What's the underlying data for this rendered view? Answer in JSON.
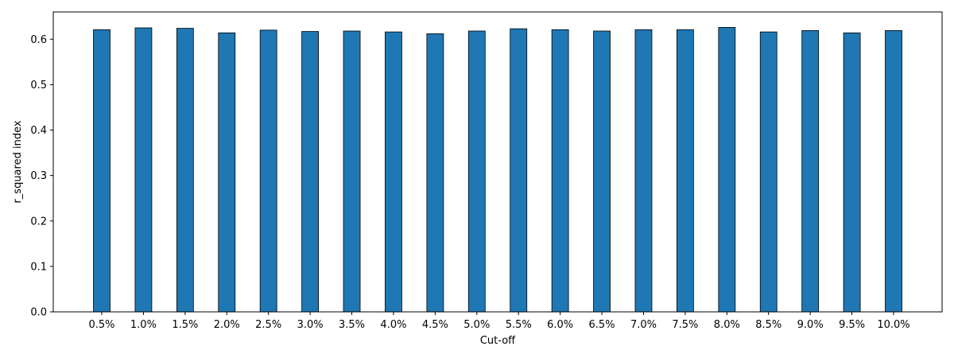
{
  "chart_data": {
    "type": "bar",
    "xlabel": "Cut-off",
    "ylabel": "r_squared index",
    "ylim": [
      0,
      0.66
    ],
    "yticks": [
      0.0,
      0.1,
      0.2,
      0.3,
      0.4,
      0.5,
      0.6
    ],
    "ytick_labels": [
      "0.0",
      "0.1",
      "0.2",
      "0.3",
      "0.4",
      "0.5",
      "0.6"
    ],
    "grid": false,
    "bar_color": "#1f77b4",
    "edge_color": "#000000",
    "categories": [
      "0.5%",
      "1.0%",
      "1.5%",
      "2.0%",
      "2.5%",
      "3.0%",
      "3.5%",
      "4.0%",
      "4.5%",
      "5.0%",
      "5.5%",
      "6.0%",
      "6.5%",
      "7.0%",
      "7.5%",
      "8.0%",
      "8.5%",
      "9.0%",
      "9.5%",
      "10.0%"
    ],
    "values": [
      0.621,
      0.625,
      0.624,
      0.614,
      0.62,
      0.617,
      0.618,
      0.616,
      0.612,
      0.618,
      0.623,
      0.621,
      0.618,
      0.621,
      0.621,
      0.626,
      0.616,
      0.619,
      0.614,
      0.619
    ]
  }
}
